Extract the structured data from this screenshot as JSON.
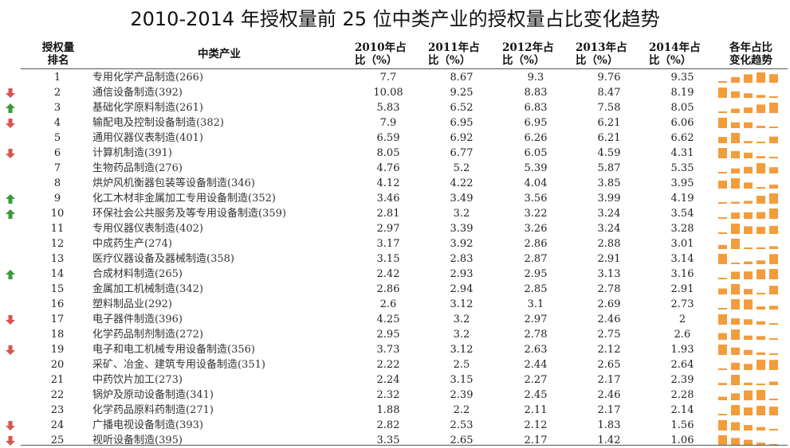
{
  "title": "2010-2014 年授权量前 25 位中类产业的授权量占比变化趋势",
  "headers": {
    "rank_line1": "授权量",
    "rank_line2": "排名",
    "industry": "中类产业",
    "y2010_line1": "2010年占",
    "y2010_line2": "比（%）",
    "y2011_line1": "2011年占",
    "y2011_line2": "比（%）",
    "y2012_line1": "2012年占",
    "y2012_line2": "比（%）",
    "y2013_line1": "2013年占",
    "y2013_line2": "比（%）",
    "y2014_line1": "2014年占",
    "y2014_line2": "比（%）",
    "trend_line1": "各年占比",
    "trend_line2": "变化趋势"
  },
  "colors": {
    "spark_bar": "#f39c3c",
    "arrow_up": "#3a9a3a",
    "arrow_down": "#d9534f"
  },
  "chart_data": {
    "type": "table",
    "title": "2010-2014 年授权量前 25 位中类产业的授权量占比变化趋势",
    "columns": [
      "授权量排名",
      "中类产业",
      "2010年占比（%）",
      "2011年占比（%）",
      "2012年占比（%）",
      "2013年占比（%）",
      "2014年占比（%）",
      "各年占比变化趋势"
    ],
    "rows": [
      {
        "rank": "1",
        "name": "专用化学产品制造(266)",
        "values": [
          "7.7",
          "8.67",
          "9.3",
          "9.76",
          "9.35"
        ],
        "arrow": "none"
      },
      {
        "rank": "2",
        "name": "通信设备制造(392)",
        "values": [
          "10.08",
          "9.25",
          "8.83",
          "8.47",
          "8.19"
        ],
        "arrow": "down"
      },
      {
        "rank": "3",
        "name": "基础化学原料制造(261)",
        "values": [
          "5.83",
          "6.52",
          "6.83",
          "7.58",
          "8.05"
        ],
        "arrow": "up"
      },
      {
        "rank": "4",
        "name": "输配电及控制设备制造(382)",
        "values": [
          "7.9",
          "6.95",
          "6.95",
          "6.21",
          "6.06"
        ],
        "arrow": "down"
      },
      {
        "rank": "5",
        "name": "通用仪器仪表制造(401)",
        "values": [
          "6.59",
          "6.92",
          "6.26",
          "6.21",
          "6.62"
        ],
        "arrow": "none"
      },
      {
        "rank": "6",
        "name": "计算机制造(391)",
        "values": [
          "8.05",
          "6.77",
          "6.05",
          "4.59",
          "4.31"
        ],
        "arrow": "down"
      },
      {
        "rank": "7",
        "name": "生物药品制造(276)",
        "values": [
          "4.76",
          "5.2",
          "5.39",
          "5.87",
          "5.35"
        ],
        "arrow": "none"
      },
      {
        "rank": "8",
        "name": "烘炉风机衡器包装等设备制造(346)",
        "values": [
          "4.12",
          "4.22",
          "4.04",
          "3.85",
          "3.95"
        ],
        "arrow": "none"
      },
      {
        "rank": "9",
        "name": "化工木材非金属加工专用设备制造(352)",
        "values": [
          "3.46",
          "3.49",
          "3.56",
          "3.99",
          "4.19"
        ],
        "arrow": "up"
      },
      {
        "rank": "10",
        "name": "环保社会公共服务及等专用设备制造(359)",
        "values": [
          "2.81",
          "3.2",
          "3.22",
          "3.24",
          "3.54"
        ],
        "arrow": "up"
      },
      {
        "rank": "11",
        "name": "专用仪器仪表制造(402)",
        "values": [
          "2.97",
          "3.39",
          "3.26",
          "3.24",
          "3.28"
        ],
        "arrow": "none"
      },
      {
        "rank": "12",
        "name": "中成药生产(274)",
        "values": [
          "3.17",
          "3.92",
          "2.86",
          "2.88",
          "3.01"
        ],
        "arrow": "none"
      },
      {
        "rank": "13",
        "name": "医疗仪器设备及器械制造(358)",
        "values": [
          "3.15",
          "2.83",
          "2.87",
          "2.91",
          "3.14"
        ],
        "arrow": "none"
      },
      {
        "rank": "14",
        "name": "合成材料制造(265)",
        "values": [
          "2.42",
          "2.93",
          "2.95",
          "3.13",
          "3.16"
        ],
        "arrow": "up"
      },
      {
        "rank": "15",
        "name": "金属加工机械制造(342)",
        "values": [
          "2.86",
          "2.94",
          "2.85",
          "2.78",
          "2.91"
        ],
        "arrow": "none"
      },
      {
        "rank": "16",
        "name": "塑料制品业(292)",
        "values": [
          "2.6",
          "3.12",
          "3.1",
          "2.69",
          "2.73"
        ],
        "arrow": "none"
      },
      {
        "rank": "17",
        "name": "电子器件制造(396)",
        "values": [
          "4.25",
          "3.2",
          "2.97",
          "2.46",
          "2"
        ],
        "arrow": "down"
      },
      {
        "rank": "18",
        "name": "化学药品制剂制造(272)",
        "values": [
          "2.95",
          "3.2",
          "2.78",
          "2.75",
          "2.6"
        ],
        "arrow": "none"
      },
      {
        "rank": "19",
        "name": "电子和电工机械专用设备制造(356)",
        "values": [
          "3.73",
          "3.12",
          "2.63",
          "2.12",
          "1.93"
        ],
        "arrow": "down"
      },
      {
        "rank": "20",
        "name": "采矿、冶金、建筑专用设备制造(351)",
        "values": [
          "2.22",
          "2.5",
          "2.44",
          "2.65",
          "2.64"
        ],
        "arrow": "none"
      },
      {
        "rank": "21",
        "name": "中药饮片加工(273)",
        "values": [
          "2.24",
          "3.15",
          "2.27",
          "2.17",
          "2.39"
        ],
        "arrow": "none"
      },
      {
        "rank": "22",
        "name": "锅炉及原动设备制造(341)",
        "values": [
          "2.32",
          "2.39",
          "2.45",
          "2.46",
          "2.28"
        ],
        "arrow": "none"
      },
      {
        "rank": "23",
        "name": "化学药品原料药制造(271)",
        "values": [
          "1.88",
          "2.2",
          "2.11",
          "2.17",
          "2.14"
        ],
        "arrow": "none"
      },
      {
        "rank": "24",
        "name": "广播电视设备制造(393)",
        "values": [
          "2.82",
          "2.53",
          "2.12",
          "1.83",
          "1.56"
        ],
        "arrow": "down"
      },
      {
        "rank": "25",
        "name": "视听设备制造(395)",
        "values": [
          "3.35",
          "2.65",
          "2.17",
          "1.42",
          "1.06"
        ],
        "arrow": "down"
      }
    ]
  }
}
